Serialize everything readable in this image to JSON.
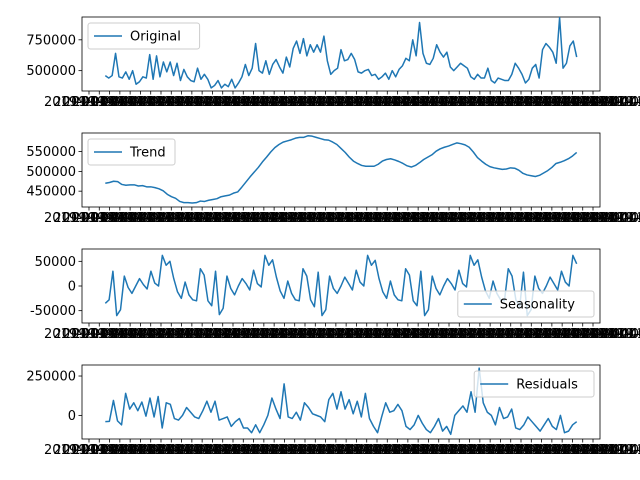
{
  "chart_data": [
    {
      "type": "line",
      "series": [
        {
          "name": "Original",
          "values": [
            460000,
            440000,
            460000,
            640000,
            450000,
            440000,
            490000,
            430000,
            500000,
            390000,
            410000,
            450000,
            440000,
            630000,
            430000,
            620000,
            450000,
            570000,
            490000,
            570000,
            460000,
            560000,
            420000,
            510000,
            450000,
            420000,
            410000,
            520000,
            430000,
            470000,
            430000,
            360000,
            380000,
            420000,
            360000,
            390000,
            370000,
            430000,
            360000,
            400000,
            450000,
            550000,
            460000,
            520000,
            720000,
            500000,
            480000,
            580000,
            470000,
            550000,
            590000,
            530000,
            480000,
            610000,
            530000,
            680000,
            740000,
            640000,
            760000,
            620000,
            710000,
            650000,
            710000,
            650000,
            780000,
            580000,
            470000,
            500000,
            520000,
            670000,
            580000,
            590000,
            640000,
            590000,
            490000,
            480000,
            500000,
            510000,
            460000,
            470000,
            430000,
            450000,
            480000,
            430000,
            500000,
            450000,
            510000,
            540000,
            600000,
            580000,
            750000,
            620000,
            890000,
            640000,
            560000,
            550000,
            600000,
            710000,
            650000,
            610000,
            650000,
            530000,
            500000,
            530000,
            560000,
            540000,
            520000,
            450000,
            430000,
            470000,
            440000,
            440000,
            520000,
            420000,
            400000,
            440000,
            430000,
            420000,
            420000,
            470000,
            560000,
            520000,
            470000,
            400000,
            430000,
            520000,
            550000,
            440000,
            670000,
            720000,
            690000,
            650000,
            560000,
            930000,
            520000,
            560000,
            700000,
            740000,
            610000
          ]
        }
      ],
      "ytick_labels": [
        "500000",
        "750000"
      ],
      "ylim": [
        335000,
        935000
      ],
      "yticks": [
        500000,
        750000
      ],
      "legend_position": "top-left",
      "xtick_text": "2019-01-04"
    },
    {
      "type": "line",
      "series": [
        {
          "name": "Trend",
          "values": [
            470000,
            472000,
            475000,
            474000,
            467000,
            465000,
            466000,
            466000,
            463000,
            464000,
            461000,
            461000,
            459000,
            456000,
            451000,
            442000,
            436000,
            432000,
            424000,
            421000,
            421000,
            420000,
            421000,
            425000,
            424000,
            427000,
            429000,
            431000,
            436000,
            438000,
            440000,
            445000,
            448000,
            460000,
            473000,
            486000,
            498000,
            510000,
            524000,
            536000,
            549000,
            560000,
            568000,
            574000,
            577000,
            580000,
            584000,
            586000,
            586000,
            590000,
            589000,
            586000,
            583000,
            580000,
            579000,
            574000,
            568000,
            558000,
            548000,
            536000,
            526000,
            520000,
            515000,
            513000,
            513000,
            513000,
            518000,
            526000,
            530000,
            532000,
            529000,
            525000,
            520000,
            514000,
            511000,
            515000,
            522000,
            530000,
            536000,
            542000,
            551000,
            557000,
            561000,
            564000,
            568000,
            572000,
            570000,
            567000,
            561000,
            549000,
            535000,
            526000,
            518000,
            512000,
            509000,
            507000,
            505000,
            506000,
            509000,
            508000,
            503000,
            495000,
            491000,
            489000,
            487000,
            490000,
            496000,
            502000,
            510000,
            520000,
            523000,
            527000,
            532000,
            539000,
            548000
          ]
        }
      ],
      "ytick_labels": [
        "450000",
        "500000",
        "550000"
      ],
      "ylim": [
        410000,
        597000
      ],
      "yticks": [
        450000,
        500000,
        550000
      ],
      "legend_position": "top-left"
    },
    {
      "type": "line",
      "series": [
        {
          "name": "Seasonality",
          "values": [
            -35000,
            -28000,
            30000,
            -60000,
            -48000,
            20000,
            -3000,
            -15000,
            0,
            15000,
            3000,
            -6000,
            30000,
            6000,
            0,
            62000,
            42000,
            50000,
            15000,
            -12000,
            -25000,
            8000,
            -18000,
            -28000,
            -30000,
            35000,
            22000,
            -30000,
            -40000,
            30000,
            -58000,
            -45000,
            20000,
            -5000,
            -18000,
            0,
            15000,
            5000,
            -8000,
            32000,
            5000,
            -2000,
            62000,
            42000,
            53000,
            18000,
            -10000,
            -25000,
            10000,
            -15000,
            -28000,
            -30000,
            35000,
            20000,
            -28000,
            -42000,
            28000,
            -60000,
            -48000,
            20000,
            -5000,
            -15000,
            0,
            18000,
            5000,
            -8000,
            32000,
            8000,
            0,
            62000,
            42000,
            52000,
            15000,
            -12000,
            -25000,
            10000,
            -18000,
            -28000,
            -30000,
            35000,
            22000,
            -30000,
            -40000,
            30000,
            -60000,
            -48000,
            20000,
            -5000,
            -18000,
            0,
            15000,
            5000,
            -8000,
            32000,
            5000,
            -2000,
            62000,
            42000,
            53000,
            18000,
            -10000,
            -25000,
            10000,
            -15000,
            -28000,
            -30000,
            35000,
            20000,
            -28000,
            -42000,
            28000,
            -60000,
            -48000,
            20000,
            -5000,
            -15000,
            0,
            18000,
            5000,
            -8000,
            30000,
            8000,
            0,
            62000,
            45000
          ]
        }
      ],
      "ytick_labels": [
        "-50000",
        "0",
        "50000"
      ],
      "ylim": [
        -75000,
        75000
      ],
      "yticks": [
        -50000,
        0,
        50000
      ],
      "legend_position": "bottom-right"
    },
    {
      "type": "line",
      "series": [
        {
          "name": "Residuals",
          "values": [
            -40000,
            -38000,
            95000,
            -35000,
            -60000,
            140000,
            40000,
            80000,
            30000,
            85000,
            -5000,
            110000,
            -10000,
            120000,
            -80000,
            80000,
            70000,
            -20000,
            -30000,
            0,
            50000,
            20000,
            -10000,
            -20000,
            30000,
            90000,
            20000,
            90000,
            -30000,
            -20000,
            -10000,
            -70000,
            -40000,
            -20000,
            -80000,
            -80000,
            -110000,
            -60000,
            -110000,
            -60000,
            0,
            110000,
            40000,
            -20000,
            200000,
            -10000,
            -20000,
            20000,
            -30000,
            80000,
            50000,
            10000,
            0,
            -10000,
            -40000,
            100000,
            140000,
            40000,
            150000,
            40000,
            100000,
            10000,
            90000,
            -10000,
            140000,
            -20000,
            -70000,
            -110000,
            -10000,
            80000,
            20000,
            30000,
            70000,
            30000,
            -70000,
            -90000,
            -60000,
            0,
            -50000,
            -90000,
            -110000,
            -70000,
            -20000,
            -100000,
            -70000,
            -120000,
            0,
            30000,
            60000,
            20000,
            150000,
            20000,
            300000,
            80000,
            20000,
            0,
            -60000,
            50000,
            -20000,
            -10000,
            40000,
            -80000,
            -90000,
            -60000,
            -10000,
            -40000,
            -70000,
            -100000,
            -60000,
            -20000,
            -70000,
            -90000,
            0,
            -110000,
            -100000,
            -60000,
            -40000
          ]
        }
      ],
      "ytick_labels": [
        "0",
        "250000"
      ],
      "ylim": [
        -150000,
        320000
      ],
      "yticks": [
        0,
        250000
      ],
      "legend_position": "top-right"
    }
  ]
}
